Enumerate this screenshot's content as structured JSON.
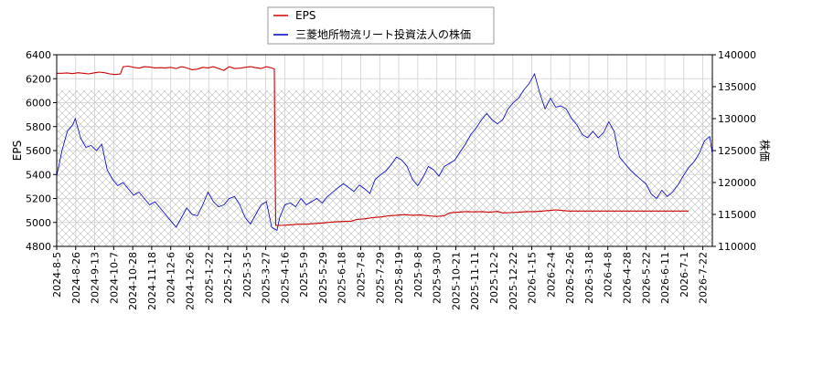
{
  "chart_data": {
    "type": "line",
    "title": "",
    "xlabel": "",
    "ylabel_left": "EPS",
    "ylabel_right": "株価",
    "y_left_lim": [
      4800,
      6400
    ],
    "y_left_ticks": [
      "4800",
      "5000",
      "5200",
      "5400",
      "5600",
      "5800",
      "6000",
      "6200",
      "6400"
    ],
    "y_right_lim": [
      110000,
      140000
    ],
    "y_right_ticks": [
      "110000",
      "115000",
      "120000",
      "125000",
      "130000",
      "135000",
      "140000"
    ],
    "x_ticks": [
      "2024-8-5",
      "2024-8-26",
      "2024-9-13",
      "2024-10-7",
      "2024-10-28",
      "2024-11-18",
      "2024-12-6",
      "2024-12-26",
      "2025-1-22",
      "2025-2-12",
      "2025-3-5",
      "2025-3-27",
      "2025-4-16",
      "2025-5-9",
      "2025-5-29",
      "2025-6-18",
      "2025-7-8",
      "2025-7-29",
      "2025-8-19",
      "2025-9-8",
      "2025-9-30",
      "2025-10-21",
      "2025-11-11",
      "2025-12-2",
      "2025-12-22",
      "2026-1-15",
      "2026-2-4",
      "2026-2-26",
      "2026-3-18",
      "2026-4-8",
      "2026-4-28",
      "2026-5-22",
      "2026-6-11",
      "2026-7-1",
      "2026-7-22"
    ],
    "grid": true,
    "legend_position": "top-center",
    "series": [
      {
        "name": "EPS",
        "axis": "left",
        "color": "#cc0000",
        "points": [
          [
            0,
            6245
          ],
          [
            2,
            6245
          ],
          [
            4,
            6248
          ],
          [
            6,
            6242
          ],
          [
            8,
            6250
          ],
          [
            10,
            6245
          ],
          [
            12,
            6240
          ],
          [
            14,
            6248
          ],
          [
            16,
            6255
          ],
          [
            18,
            6250
          ],
          [
            20,
            6240
          ],
          [
            22,
            6235
          ],
          [
            24,
            6240
          ],
          [
            25,
            6300
          ],
          [
            27,
            6305
          ],
          [
            29,
            6295
          ],
          [
            31,
            6288
          ],
          [
            33,
            6300
          ],
          [
            35,
            6298
          ],
          [
            37,
            6290
          ],
          [
            39,
            6292
          ],
          [
            41,
            6290
          ],
          [
            43,
            6295
          ],
          [
            45,
            6285
          ],
          [
            47,
            6300
          ],
          [
            49,
            6290
          ],
          [
            51,
            6275
          ],
          [
            53,
            6280
          ],
          [
            55,
            6295
          ],
          [
            57,
            6290
          ],
          [
            59,
            6300
          ],
          [
            61,
            6285
          ],
          [
            63,
            6270
          ],
          [
            65,
            6300
          ],
          [
            67,
            6285
          ],
          [
            69,
            6288
          ],
          [
            71,
            6295
          ],
          [
            73,
            6300
          ],
          [
            75,
            6292
          ],
          [
            77,
            6285
          ],
          [
            79,
            6300
          ],
          [
            81,
            6290
          ],
          [
            82,
            6280
          ],
          [
            82.2,
            5650
          ],
          [
            82.5,
            4975
          ],
          [
            85,
            4975
          ],
          [
            88,
            4980
          ],
          [
            91,
            4985
          ],
          [
            94,
            4985
          ],
          [
            97,
            4990
          ],
          [
            100,
            4995
          ],
          [
            102,
            5000
          ],
          [
            105,
            5005
          ],
          [
            108,
            5008
          ],
          [
            111,
            5010
          ],
          [
            113,
            5025
          ],
          [
            116,
            5030
          ],
          [
            119,
            5040
          ],
          [
            122,
            5045
          ],
          [
            125,
            5055
          ],
          [
            128,
            5060
          ],
          [
            131,
            5065
          ],
          [
            134,
            5060
          ],
          [
            137,
            5062
          ],
          [
            140,
            5055
          ],
          [
            143,
            5050
          ],
          [
            146,
            5055
          ],
          [
            148,
            5080
          ],
          [
            151,
            5085
          ],
          [
            154,
            5090
          ],
          [
            157,
            5088
          ],
          [
            160,
            5090
          ],
          [
            163,
            5085
          ],
          [
            166,
            5092
          ],
          [
            168,
            5080
          ],
          [
            171,
            5082
          ],
          [
            174,
            5085
          ],
          [
            177,
            5090
          ],
          [
            180,
            5090
          ],
          [
            183,
            5095
          ],
          [
            186,
            5100
          ],
          [
            188,
            5105
          ],
          [
            190,
            5100
          ],
          [
            193,
            5095
          ],
          [
            196,
            5095
          ],
          [
            199,
            5095
          ],
          [
            202,
            5095
          ],
          [
            205,
            5095
          ],
          [
            208,
            5095
          ],
          [
            211,
            5095
          ],
          [
            214,
            5095
          ],
          [
            217,
            5095
          ],
          [
            220,
            5095
          ],
          [
            223,
            5095
          ],
          [
            226,
            5095
          ],
          [
            229,
            5095
          ],
          [
            232,
            5095
          ],
          [
            235,
            5095
          ],
          [
            238,
            5095
          ]
        ]
      },
      {
        "name": "三菱地所物流リート投資法人の株価",
        "axis": "right",
        "color": "#0000cc",
        "points": [
          [
            0,
            121000
          ],
          [
            2,
            125000
          ],
          [
            4,
            128000
          ],
          [
            6,
            129000
          ],
          [
            7,
            130000
          ],
          [
            9,
            127000
          ],
          [
            11,
            125500
          ],
          [
            13,
            125800
          ],
          [
            15,
            125000
          ],
          [
            17,
            126000
          ],
          [
            19,
            122000
          ],
          [
            21,
            120500
          ],
          [
            23,
            119500
          ],
          [
            25,
            120000
          ],
          [
            27,
            119000
          ],
          [
            29,
            118000
          ],
          [
            31,
            118500
          ],
          [
            33,
            117500
          ],
          [
            35,
            116500
          ],
          [
            37,
            117000
          ],
          [
            39,
            116000
          ],
          [
            41,
            115000
          ],
          [
            43,
            114000
          ],
          [
            45,
            113000
          ],
          [
            47,
            114500
          ],
          [
            49,
            116000
          ],
          [
            51,
            115000
          ],
          [
            53,
            114800
          ],
          [
            55,
            116500
          ],
          [
            57,
            118500
          ],
          [
            59,
            117000
          ],
          [
            61,
            116200
          ],
          [
            63,
            116500
          ],
          [
            65,
            117500
          ],
          [
            67,
            117800
          ],
          [
            69,
            116500
          ],
          [
            71,
            114500
          ],
          [
            73,
            113500
          ],
          [
            75,
            115000
          ],
          [
            77,
            116500
          ],
          [
            79,
            117000
          ],
          [
            81,
            113000
          ],
          [
            83,
            112500
          ],
          [
            84,
            114500
          ],
          [
            86,
            116500
          ],
          [
            88,
            116800
          ],
          [
            90,
            116200
          ],
          [
            92,
            117500
          ],
          [
            94,
            116500
          ],
          [
            96,
            117000
          ],
          [
            98,
            117500
          ],
          [
            100,
            116800
          ],
          [
            102,
            117800
          ],
          [
            104,
            118500
          ],
          [
            106,
            119200
          ],
          [
            108,
            119800
          ],
          [
            110,
            119200
          ],
          [
            112,
            118600
          ],
          [
            114,
            119600
          ],
          [
            116,
            119000
          ],
          [
            118,
            118300
          ],
          [
            120,
            120500
          ],
          [
            122,
            121200
          ],
          [
            124,
            121800
          ],
          [
            126,
            122800
          ],
          [
            128,
            124000
          ],
          [
            130,
            123500
          ],
          [
            132,
            122500
          ],
          [
            134,
            120500
          ],
          [
            136,
            119500
          ],
          [
            138,
            120800
          ],
          [
            140,
            122500
          ],
          [
            142,
            122000
          ],
          [
            144,
            121000
          ],
          [
            146,
            122500
          ],
          [
            148,
            123000
          ],
          [
            150,
            123500
          ],
          [
            152,
            124800
          ],
          [
            154,
            126000
          ],
          [
            156,
            127500
          ],
          [
            158,
            128500
          ],
          [
            160,
            129800
          ],
          [
            162,
            130800
          ],
          [
            164,
            129800
          ],
          [
            166,
            129200
          ],
          [
            168,
            129800
          ],
          [
            170,
            131500
          ],
          [
            172,
            132500
          ],
          [
            174,
            133200
          ],
          [
            176,
            134500
          ],
          [
            178,
            135500
          ],
          [
            180,
            137000
          ],
          [
            182,
            134000
          ],
          [
            184,
            131500
          ],
          [
            186,
            133200
          ],
          [
            188,
            131800
          ],
          [
            190,
            132000
          ],
          [
            192,
            131500
          ],
          [
            194,
            130000
          ],
          [
            196,
            129000
          ],
          [
            198,
            127500
          ],
          [
            200,
            127000
          ],
          [
            202,
            128000
          ],
          [
            204,
            127000
          ],
          [
            206,
            127800
          ],
          [
            208,
            129500
          ],
          [
            210,
            128000
          ],
          [
            212,
            124000
          ],
          [
            214,
            123000
          ],
          [
            216,
            122000
          ],
          [
            218,
            121200
          ],
          [
            220,
            120500
          ],
          [
            222,
            119800
          ],
          [
            224,
            118200
          ],
          [
            226,
            117500
          ],
          [
            228,
            118800
          ],
          [
            230,
            117800
          ],
          [
            232,
            118500
          ],
          [
            234,
            119600
          ],
          [
            236,
            121000
          ],
          [
            238,
            122300
          ],
          [
            240,
            123200
          ],
          [
            242,
            124500
          ],
          [
            244,
            126500
          ],
          [
            246,
            127200
          ],
          [
            247,
            124500
          ]
        ]
      }
    ],
    "x_index_max": 247
  }
}
